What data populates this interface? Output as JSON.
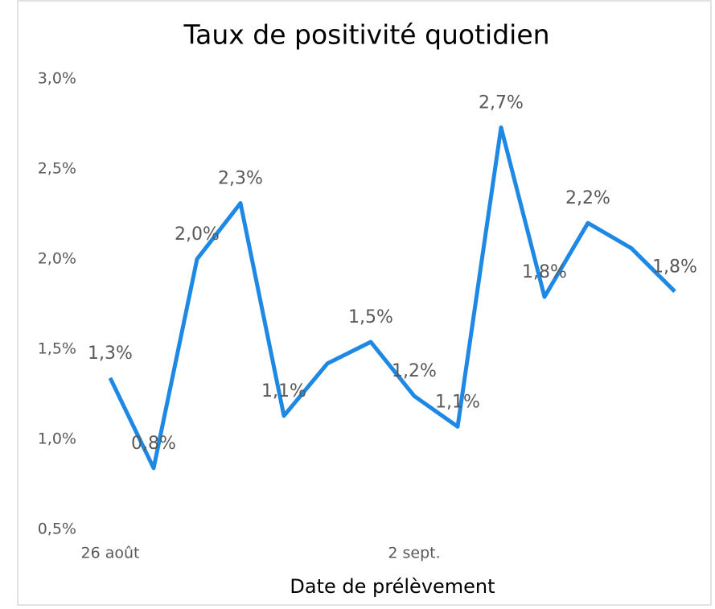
{
  "chart_data": {
    "type": "line",
    "title": "Taux de positivité quotidien",
    "x_label": "Date de prélèvement",
    "categories": [
      "26 août",
      null,
      null,
      null,
      null,
      null,
      null,
      "2 sept.",
      null,
      null,
      null,
      null,
      null,
      null
    ],
    "series": [
      {
        "name": "Taux de positivité",
        "color": "#1e88e5",
        "values": [
          1.34,
          0.84,
          2.0,
          2.31,
          1.13,
          1.42,
          1.54,
          1.24,
          1.07,
          2.73,
          1.79,
          2.2,
          2.06,
          1.82
        ],
        "value_labels": [
          "1,3%",
          "0,8%",
          "2,0%",
          "2,3%",
          "1,1%",
          null,
          "1,5%",
          "1,2%",
          "1,1%",
          "2,7%",
          "1,8%",
          "2,2%",
          null,
          "1,8%"
        ]
      }
    ],
    "ylim": [
      0.5,
      3.0
    ],
    "yticks": [
      {
        "value": 0.5,
        "label": "0,5%"
      },
      {
        "value": 1.0,
        "label": "1,0%"
      },
      {
        "value": 1.5,
        "label": "1,5%"
      },
      {
        "value": 2.0,
        "label": "2,0%"
      },
      {
        "value": 2.5,
        "label": "2,5%"
      },
      {
        "value": 3.0,
        "label": "3,0%"
      }
    ],
    "grid": false
  }
}
